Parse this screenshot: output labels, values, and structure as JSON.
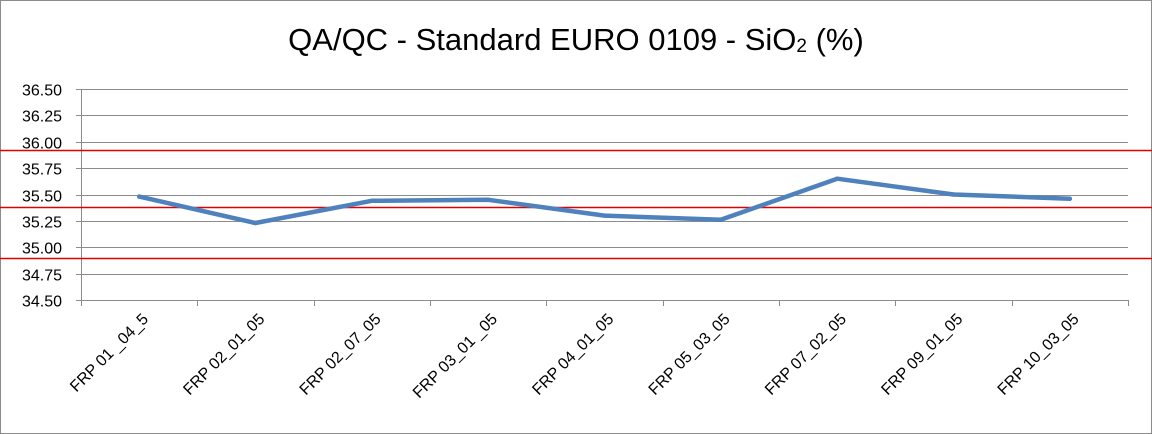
{
  "chart_data": {
    "type": "line",
    "title_main": "QA/QC - Standard EURO 0109 - SiO",
    "title_sub": "2",
    "title_suffix": " (%)",
    "categories": [
      "FRP 01 _04_5",
      "FRP 02_01_05",
      "FRP 02_07_05",
      "FRP 03_01 _05",
      "FRP 04_01_05",
      "FRP 05_03_05",
      "FRP 07_02_05",
      "FRP 09_01_05",
      "FRP 10_03_05"
    ],
    "series": [
      {
        "values": [
          35.48,
          35.23,
          35.44,
          35.45,
          35.3,
          35.26,
          35.65,
          35.5,
          35.46
        ],
        "color": "#4f81bd"
      }
    ],
    "reference_lines": [
      {
        "value": 35.92,
        "color": "#e00000"
      },
      {
        "value": 35.38,
        "color": "#e00000"
      },
      {
        "value": 34.9,
        "color": "#e00000"
      }
    ],
    "ylim": [
      34.5,
      36.5
    ],
    "yticks": [
      "36.50",
      "36.25",
      "36.00",
      "35.75",
      "35.50",
      "35.25",
      "35.00",
      "34.75",
      "34.50"
    ],
    "ytick_values": [
      36.5,
      36.25,
      36.0,
      35.75,
      35.5,
      35.25,
      35.0,
      34.75,
      34.5
    ],
    "grid": true,
    "gridline_color": "#8c8c8c",
    "legend": "none"
  }
}
